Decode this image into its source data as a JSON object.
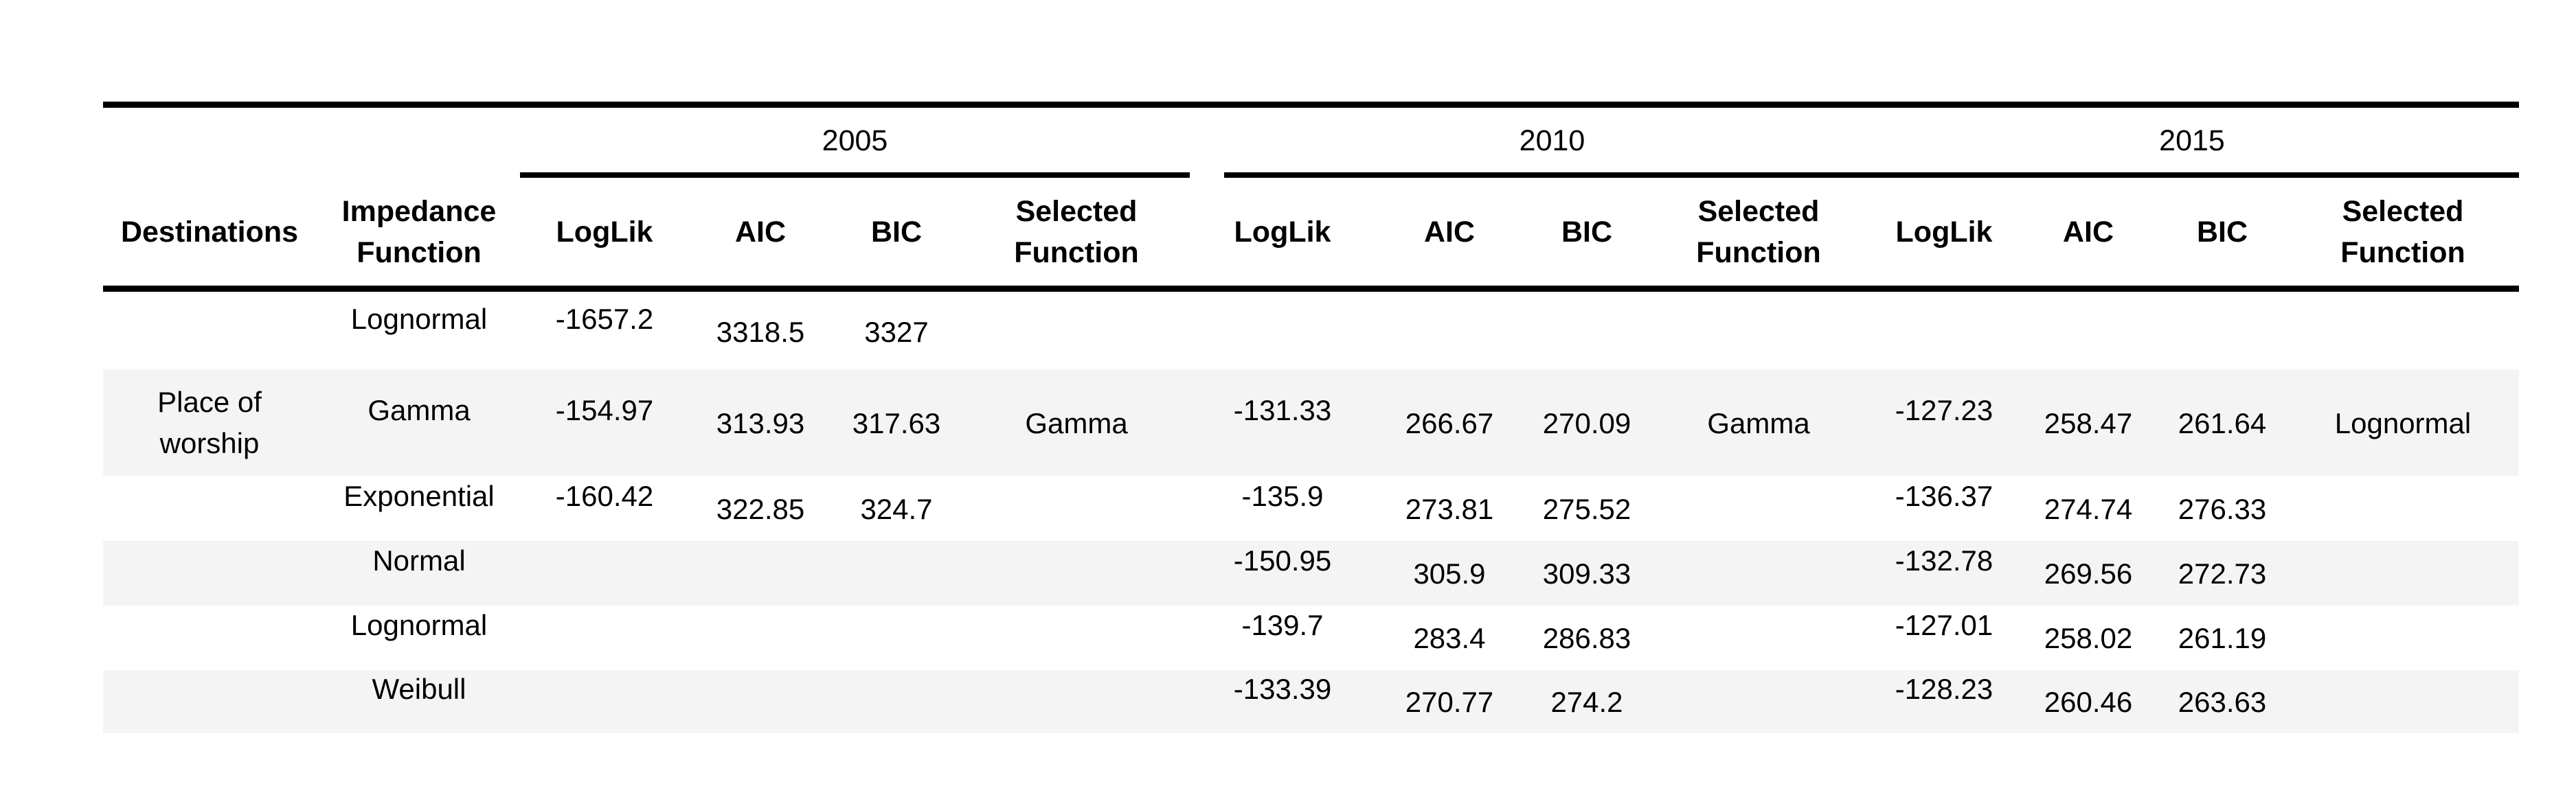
{
  "header": {
    "destinations": "Destinations",
    "impedance_function_line1": "Impedance",
    "impedance_function_line2": "Function",
    "years": [
      "2005",
      "2010",
      "2015"
    ],
    "sub_columns": {
      "loglik": "LogLik",
      "aic": "AIC",
      "bic": "BIC",
      "selected_line1": "Selected",
      "selected_line2": "Function"
    }
  },
  "destination": {
    "line1": "Place of",
    "line2": "worship"
  },
  "rows": [
    {
      "function": "Lognormal",
      "y2005": {
        "loglik": "-1657.2",
        "aic": "3318.5",
        "bic": "3327",
        "selected": ""
      },
      "y2010": {
        "loglik": "",
        "aic": "",
        "bic": "",
        "selected": ""
      },
      "y2015": {
        "loglik": "",
        "aic": "",
        "bic": "",
        "selected": ""
      }
    },
    {
      "function": "Gamma",
      "y2005": {
        "loglik": "-154.97",
        "aic": "313.93",
        "bic": "317.63",
        "selected": "Gamma"
      },
      "y2010": {
        "loglik": "-131.33",
        "aic": "266.67",
        "bic": "270.09",
        "selected": "Gamma"
      },
      "y2015": {
        "loglik": "-127.23",
        "aic": "258.47",
        "bic": "261.64",
        "selected": "Lognormal"
      }
    },
    {
      "function": "Exponential",
      "y2005": {
        "loglik": "-160.42",
        "aic": "322.85",
        "bic": "324.7",
        "selected": ""
      },
      "y2010": {
        "loglik": "-135.9",
        "aic": "273.81",
        "bic": "275.52",
        "selected": ""
      },
      "y2015": {
        "loglik": "-136.37",
        "aic": "274.74",
        "bic": "276.33",
        "selected": ""
      }
    },
    {
      "function": "Normal",
      "y2005": {
        "loglik": "",
        "aic": "",
        "bic": "",
        "selected": ""
      },
      "y2010": {
        "loglik": "-150.95",
        "aic": "305.9",
        "bic": "309.33",
        "selected": ""
      },
      "y2015": {
        "loglik": "-132.78",
        "aic": "269.56",
        "bic": "272.73",
        "selected": ""
      }
    },
    {
      "function": "Lognormal",
      "y2005": {
        "loglik": "",
        "aic": "",
        "bic": "",
        "selected": ""
      },
      "y2010": {
        "loglik": "-139.7",
        "aic": "283.4",
        "bic": "286.83",
        "selected": ""
      },
      "y2015": {
        "loglik": "-127.01",
        "aic": "258.02",
        "bic": "261.19",
        "selected": ""
      }
    },
    {
      "function": "Weibull",
      "y2005": {
        "loglik": "",
        "aic": "",
        "bic": "",
        "selected": ""
      },
      "y2010": {
        "loglik": "-133.39",
        "aic": "270.77",
        "bic": "274.2",
        "selected": ""
      },
      "y2015": {
        "loglik": "-128.23",
        "aic": "260.46",
        "bic": "263.63",
        "selected": ""
      }
    }
  ]
}
